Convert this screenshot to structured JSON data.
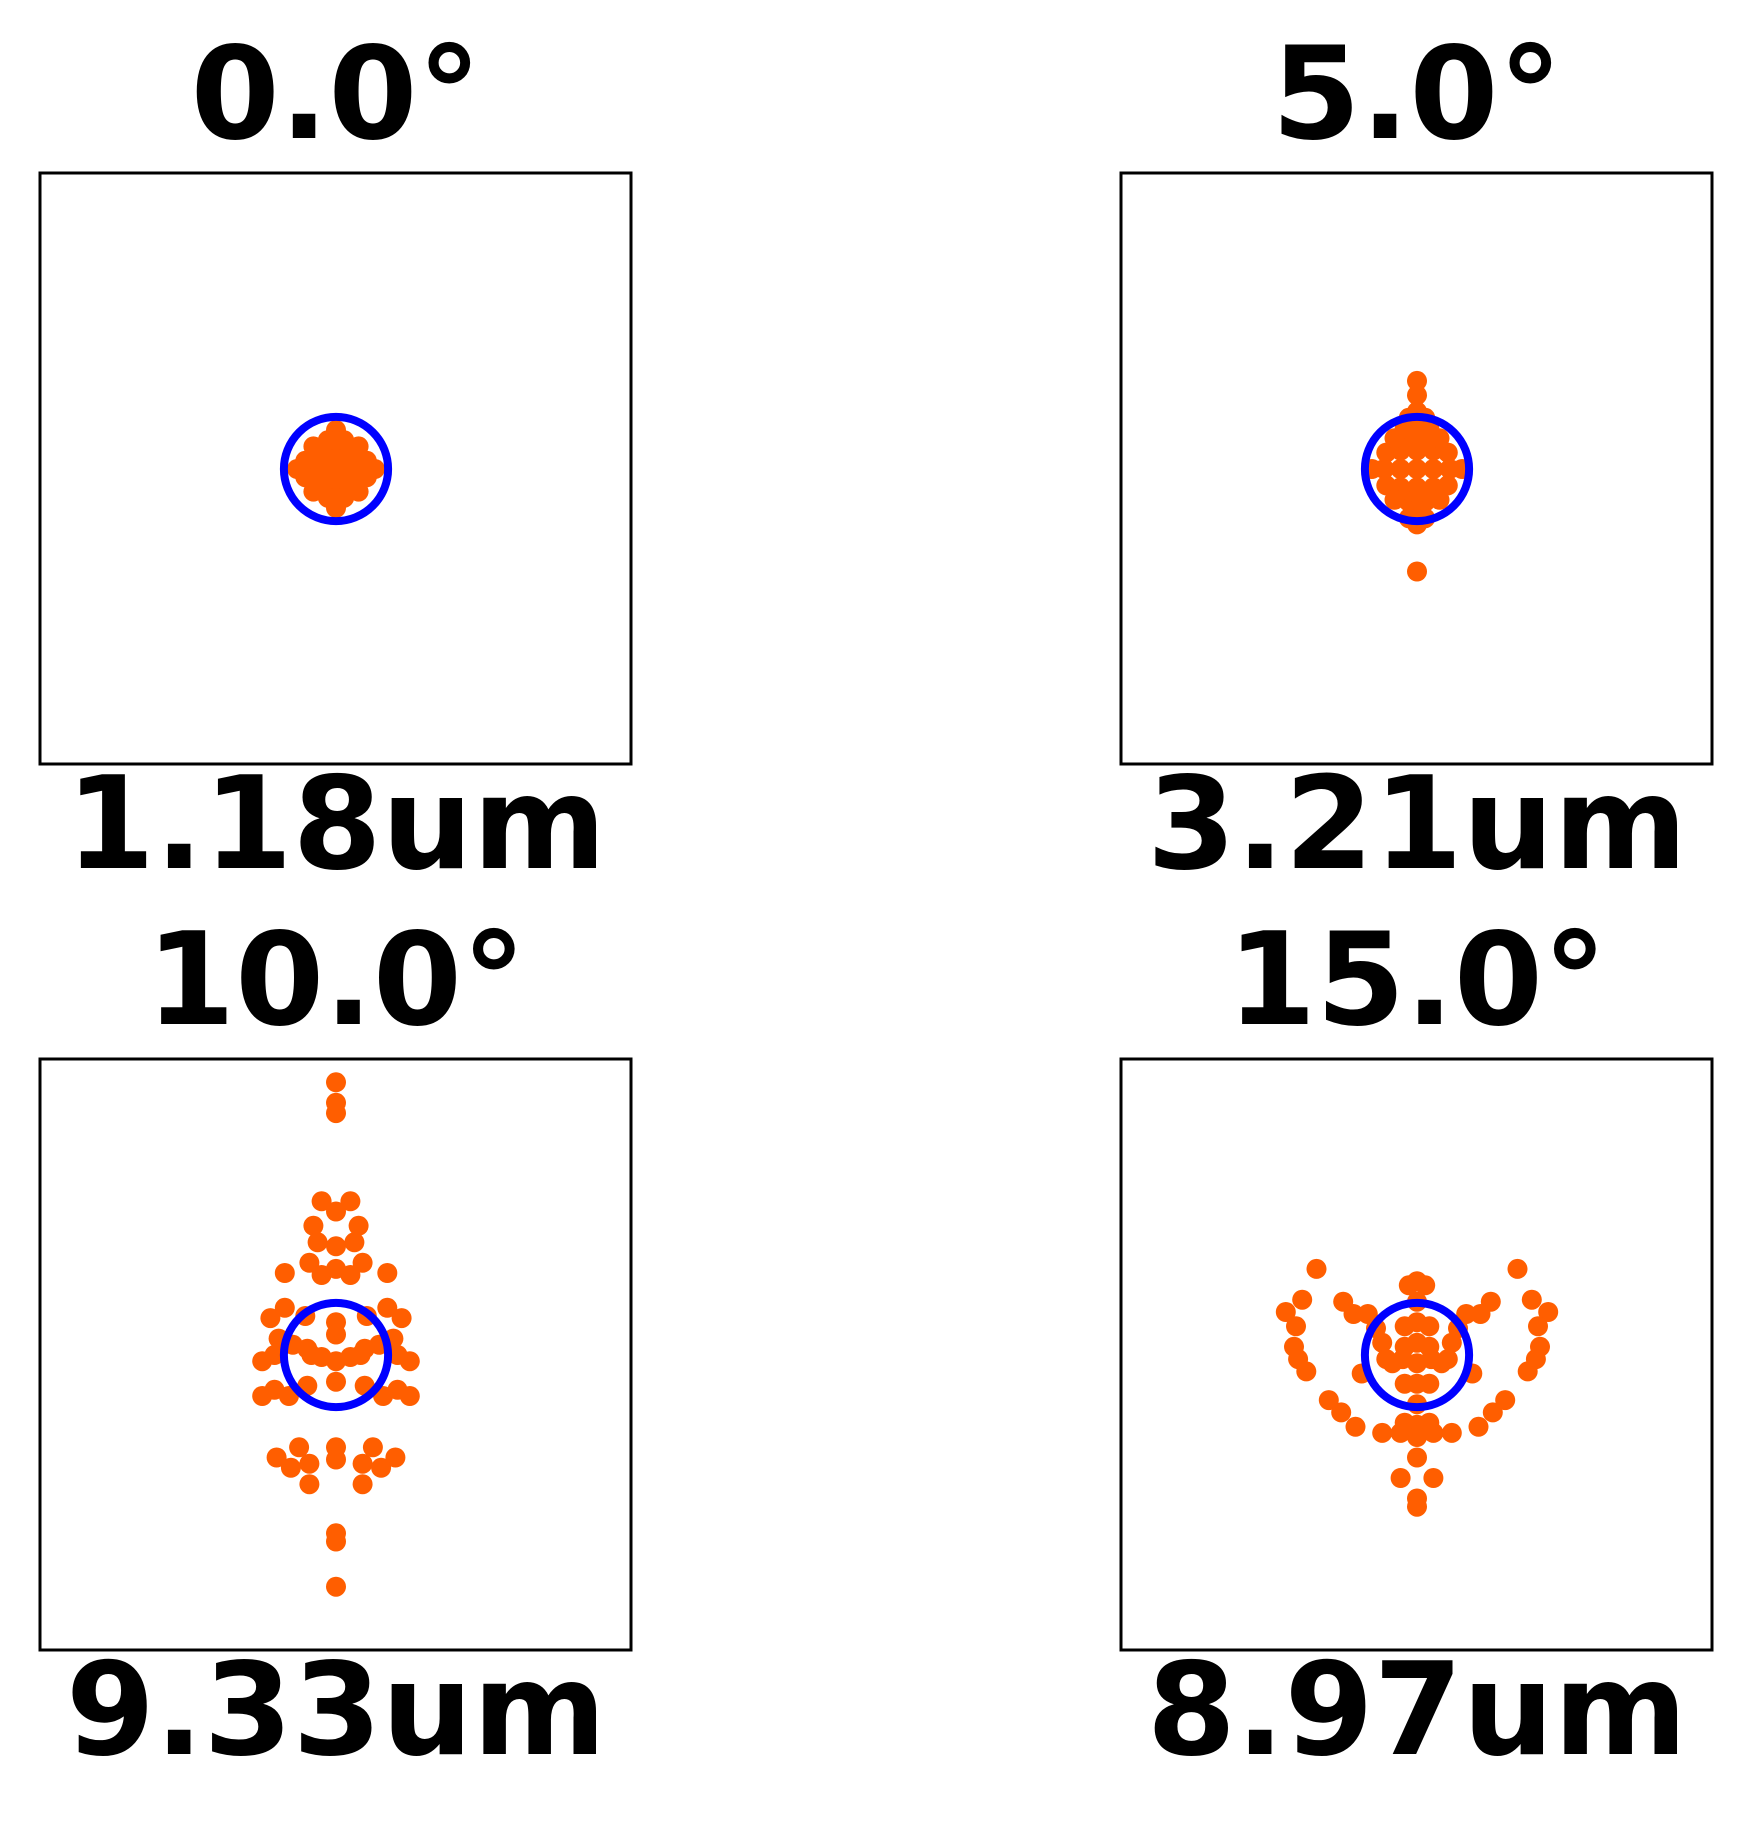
{
  "chart_data": {
    "type": "scatter",
    "airy_color": "#0000ff",
    "spot_color": "#ff5e00",
    "panels": [
      {
        "field_label": "0.0°",
        "rms_label": "1.18um",
        "airy_radius": 2.54,
        "points": [
          [
            0,
            0
          ],
          [
            0,
            1.9
          ],
          [
            0,
            -1.9
          ],
          [
            1.9,
            0
          ],
          [
            -1.9,
            0
          ],
          [
            0.95,
            0
          ],
          [
            -0.95,
            0
          ],
          [
            0,
            0.95
          ],
          [
            0,
            -0.95
          ],
          [
            1.1,
            1.1
          ],
          [
            -1.1,
            1.1
          ],
          [
            1.1,
            -1.1
          ],
          [
            -1.1,
            -1.1
          ],
          [
            0.6,
            0.6
          ],
          [
            -0.6,
            0.6
          ],
          [
            0.6,
            -0.6
          ],
          [
            -0.6,
            -0.6
          ],
          [
            1.5,
            0.4
          ],
          [
            -1.5,
            0.4
          ],
          [
            1.5,
            -0.4
          ],
          [
            -1.5,
            -0.4
          ],
          [
            0.4,
            1.4
          ],
          [
            -0.4,
            1.4
          ],
          [
            0.4,
            -1.4
          ],
          [
            -0.4,
            -1.4
          ],
          [
            0,
            0.5
          ],
          [
            0,
            -0.5
          ],
          [
            0.5,
            0
          ],
          [
            -0.5,
            0
          ]
        ]
      },
      {
        "field_label": "5.0°",
        "rms_label": "3.21um",
        "airy_radius": 2.54,
        "points": [
          [
            0,
            0
          ],
          [
            0.8,
            0
          ],
          [
            -0.8,
            0
          ],
          [
            1.6,
            0
          ],
          [
            -1.6,
            0
          ],
          [
            2.2,
            0
          ],
          [
            -2.2,
            0
          ],
          [
            0,
            0.9
          ],
          [
            0,
            -0.9
          ],
          [
            0.8,
            0.9
          ],
          [
            -0.8,
            0.9
          ],
          [
            0.8,
            -0.9
          ],
          [
            -0.8,
            -0.9
          ],
          [
            1.5,
            0.8
          ],
          [
            -1.5,
            0.8
          ],
          [
            1.5,
            -0.8
          ],
          [
            -1.5,
            -0.8
          ],
          [
            0.4,
            1.6
          ],
          [
            -0.4,
            1.6
          ],
          [
            0.4,
            -1.6
          ],
          [
            -0.4,
            -1.6
          ],
          [
            1.1,
            1.5
          ],
          [
            -1.1,
            1.5
          ],
          [
            1.1,
            -1.5
          ],
          [
            -1.1,
            -1.5
          ],
          [
            0.6,
            2.0
          ],
          [
            -0.6,
            2.0
          ],
          [
            0,
            2.0
          ],
          [
            0,
            -2.0
          ],
          [
            0,
            2.8
          ],
          [
            0,
            3.6
          ],
          [
            0,
            4.3
          ],
          [
            0.4,
            2.5
          ],
          [
            -0.4,
            2.5
          ],
          [
            0,
            -2.7
          ],
          [
            0.4,
            -2.4
          ],
          [
            -0.4,
            -2.4
          ],
          [
            0,
            -5.0
          ]
        ]
      },
      {
        "field_label": "10.0°",
        "rms_label": "9.33um",
        "airy_radius": 2.54,
        "points": [
          [
            0,
            13.3
          ],
          [
            0,
            12.3
          ],
          [
            0,
            11.8
          ],
          [
            -0.7,
            7.5
          ],
          [
            0.7,
            7.5
          ],
          [
            0,
            7.0
          ],
          [
            -1.1,
            6.3
          ],
          [
            1.1,
            6.3
          ],
          [
            -0.9,
            5.5
          ],
          [
            0.9,
            5.5
          ],
          [
            0,
            5.3
          ],
          [
            -1.3,
            4.5
          ],
          [
            1.3,
            4.5
          ],
          [
            0,
            4.2
          ],
          [
            -0.7,
            3.9
          ],
          [
            0.7,
            3.9
          ],
          [
            -2.5,
            4.0
          ],
          [
            2.5,
            4.0
          ],
          [
            -2.5,
            2.3
          ],
          [
            2.5,
            2.3
          ],
          [
            -3.2,
            1.8
          ],
          [
            3.2,
            1.8
          ],
          [
            -1.5,
            1.9
          ],
          [
            1.5,
            1.9
          ],
          [
            -2.8,
            0.8
          ],
          [
            2.8,
            0.8
          ],
          [
            -2.1,
            0.5
          ],
          [
            2.1,
            0.5
          ],
          [
            -1.4,
            0.3
          ],
          [
            1.4,
            0.3
          ],
          [
            0,
            1.6
          ],
          [
            0,
            1.0
          ],
          [
            -3.6,
            -0.3
          ],
          [
            3.6,
            -0.3
          ],
          [
            -3.0,
            0.0
          ],
          [
            3.0,
            0.0
          ],
          [
            -1.2,
            0.0
          ],
          [
            1.2,
            0.0
          ],
          [
            0,
            -0.3
          ],
          [
            -0.7,
            -0.1
          ],
          [
            0.7,
            -0.1
          ],
          [
            -3.0,
            -1.7
          ],
          [
            3.0,
            -1.7
          ],
          [
            -3.6,
            -2.0
          ],
          [
            3.6,
            -2.0
          ],
          [
            -2.3,
            -2.0
          ],
          [
            2.3,
            -2.0
          ],
          [
            -1.4,
            -1.5
          ],
          [
            1.4,
            -1.5
          ],
          [
            0,
            -1.3
          ],
          [
            -1.8,
            -4.5
          ],
          [
            1.8,
            -4.5
          ],
          [
            -2.9,
            -5.0
          ],
          [
            2.9,
            -5.0
          ],
          [
            -1.3,
            -5.3
          ],
          [
            1.3,
            -5.3
          ],
          [
            0,
            -4.5
          ],
          [
            0,
            -5.1
          ],
          [
            -2.2,
            -5.5
          ],
          [
            2.2,
            -5.5
          ],
          [
            -1.3,
            -6.3
          ],
          [
            1.3,
            -6.3
          ],
          [
            0,
            -8.7
          ],
          [
            0,
            -9.1
          ],
          [
            0,
            -11.3
          ]
        ]
      },
      {
        "field_label": "15.0°",
        "rms_label": "8.97um",
        "airy_radius": 2.54,
        "points": [
          [
            -4.9,
            4.2
          ],
          [
            4.9,
            4.2
          ],
          [
            -5.6,
            2.7
          ],
          [
            5.6,
            2.7
          ],
          [
            -6.4,
            2.1
          ],
          [
            6.4,
            2.1
          ],
          [
            -5.9,
            1.4
          ],
          [
            5.9,
            1.4
          ],
          [
            -3.6,
            2.6
          ],
          [
            3.6,
            2.6
          ],
          [
            -3.1,
            2.0
          ],
          [
            3.1,
            2.0
          ],
          [
            -2.4,
            2.0
          ],
          [
            2.4,
            2.0
          ],
          [
            -2.0,
            1.3
          ],
          [
            2.0,
            1.3
          ],
          [
            -1.7,
            0.6
          ],
          [
            1.7,
            0.6
          ],
          [
            -1.5,
            -0.2
          ],
          [
            1.5,
            -0.2
          ],
          [
            -6.0,
            0.4
          ],
          [
            6.0,
            0.4
          ],
          [
            -5.8,
            -0.2
          ],
          [
            5.8,
            -0.2
          ],
          [
            -5.4,
            -0.8
          ],
          [
            5.4,
            -0.8
          ],
          [
            -2.7,
            -0.9
          ],
          [
            2.7,
            -0.9
          ],
          [
            -1.2,
            -0.4
          ],
          [
            1.2,
            -0.4
          ],
          [
            -4.3,
            -2.2
          ],
          [
            4.3,
            -2.2
          ],
          [
            -3.7,
            -2.8
          ],
          [
            3.7,
            -2.8
          ],
          [
            -3.0,
            -3.5
          ],
          [
            3.0,
            -3.5
          ],
          [
            -1.7,
            -3.8
          ],
          [
            1.7,
            -3.8
          ],
          [
            -0.8,
            -3.8
          ],
          [
            0.8,
            -3.8
          ],
          [
            -0.6,
            -3.3
          ],
          [
            0.6,
            -3.3
          ],
          [
            0,
            3.6
          ],
          [
            0,
            2.6
          ],
          [
            0,
            1.6
          ],
          [
            0,
            0.6
          ],
          [
            0,
            -0.4
          ],
          [
            0,
            -1.4
          ],
          [
            0,
            -2.4
          ],
          [
            0,
            -3.4
          ],
          [
            0,
            -4.0
          ],
          [
            0,
            -5.0
          ],
          [
            0.4,
            3.4
          ],
          [
            -0.4,
            3.4
          ],
          [
            0.6,
            1.4
          ],
          [
            -0.6,
            1.4
          ],
          [
            -0.6,
            0.4
          ],
          [
            0.6,
            0.4
          ],
          [
            -0.7,
            -0.2
          ],
          [
            0.7,
            -0.2
          ],
          [
            -0.6,
            -1.4
          ],
          [
            0.6,
            -1.4
          ],
          [
            -0.8,
            -6.0
          ],
          [
            0.8,
            -6.0
          ],
          [
            0,
            -7.4
          ],
          [
            0,
            -7.0
          ]
        ]
      }
    ]
  }
}
